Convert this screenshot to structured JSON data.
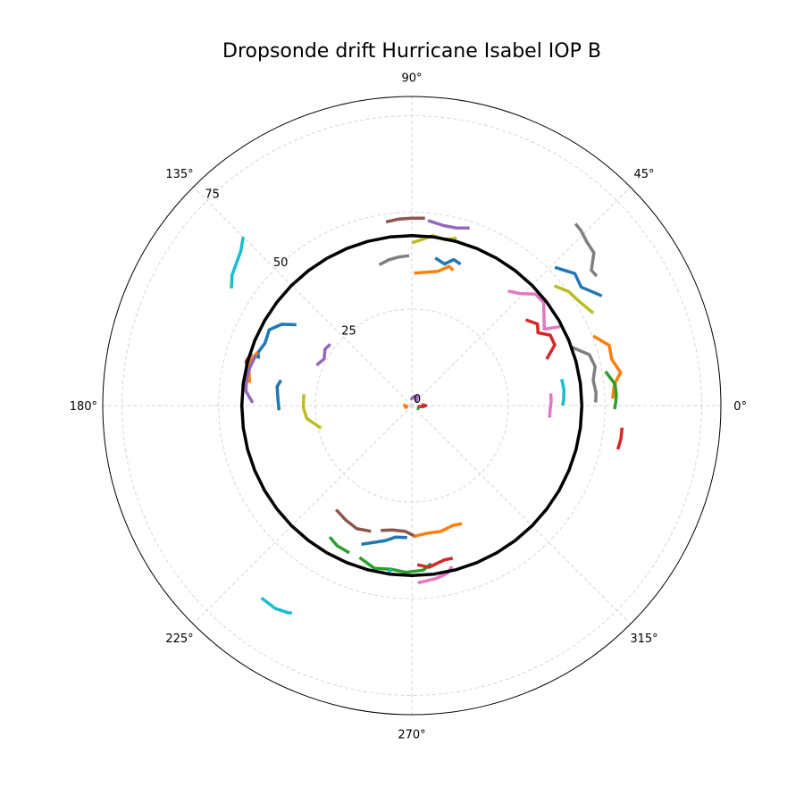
{
  "chart_data": {
    "type": "polar-line",
    "title": "Dropsonde drift Hurricane Isabel IOP B",
    "angle_ticks": [
      "0°",
      "45°",
      "90°",
      "135°",
      "180°",
      "225°",
      "270°",
      "315°"
    ],
    "angle_tick_values": [
      0,
      45,
      90,
      135,
      180,
      225,
      270,
      315
    ],
    "radial_ticks": [
      "0",
      "25",
      "50",
      "75"
    ],
    "radial_tick_values": [
      0,
      25,
      50,
      75
    ],
    "rlim": [
      0,
      80
    ],
    "grid": true,
    "eye_ring_radius": 44,
    "series": [
      {
        "color": "#8c564b",
        "points": [
          [
            98,
            48
          ],
          [
            94,
            48.4
          ],
          [
            90,
            48.5
          ],
          [
            86,
            48.6
          ]
        ]
      },
      {
        "color": "#9467bd",
        "points": [
          [
            85,
            48.1
          ],
          [
            80,
            47.3
          ],
          [
            76,
            47.4
          ],
          [
            72,
            48.3
          ]
        ]
      },
      {
        "color": "#bcbd22",
        "points": [
          [
            90,
            42.1
          ],
          [
            87,
            42.9
          ],
          [
            83,
            44.3
          ],
          [
            79,
            43.8
          ],
          [
            75,
            44.8
          ]
        ]
      },
      {
        "color": "#7f7f7f",
        "points": [
          [
            103,
            37.4
          ],
          [
            99,
            38.2
          ],
          [
            95,
            38.6
          ],
          [
            91,
            38.8
          ]
        ]
      },
      {
        "color": "#1f77b4",
        "points": [
          [
            81,
            38.7
          ],
          [
            77,
            37.6
          ],
          [
            74,
            39.3
          ],
          [
            71,
            38.7
          ]
        ]
      },
      {
        "color": "#ff7f0e",
        "points": [
          [
            89,
            34.3
          ],
          [
            84,
            34.7
          ],
          [
            79,
            35.4
          ],
          [
            75,
            37.3
          ],
          [
            73,
            36.6
          ]
        ]
      },
      {
        "color": "#7f7f7f",
        "points": [
          [
            48,
            63.3
          ],
          [
            46,
            63
          ],
          [
            43,
            62
          ],
          [
            40,
            61.5
          ],
          [
            37,
            58.2
          ],
          [
            35,
            58.4
          ]
        ]
      },
      {
        "color": "#1f77b4",
        "points": [
          [
            44,
            51.5
          ],
          [
            39,
            54.3
          ],
          [
            35,
            53.5
          ],
          [
            30,
            56.8
          ]
        ]
      },
      {
        "color": "#bcbd22",
        "points": [
          [
            40,
            48.2
          ],
          [
            36,
            50.2
          ],
          [
            32,
            51
          ],
          [
            27,
            52.7
          ]
        ]
      },
      {
        "color": "#e377c2",
        "points": [
          [
            50,
            38.7
          ],
          [
            46,
            40.3
          ],
          [
            42,
            43.1
          ],
          [
            38,
            43.3
          ],
          [
            30,
            39.6
          ],
          [
            28,
            43.5
          ]
        ]
      },
      {
        "color": "#d62728",
        "points": [
          [
            37,
            36.9
          ],
          [
            33,
            38.8
          ],
          [
            30,
            37.7
          ],
          [
            27,
            40.2
          ],
          [
            23,
            40.2
          ],
          [
            19,
            36.9
          ]
        ]
      },
      {
        "color": "#7f7f7f",
        "points": [
          [
            20,
            44.1
          ],
          [
            16,
            47.8
          ],
          [
            12,
            48.5
          ],
          [
            8,
            47.4
          ],
          [
            4,
            47.8
          ],
          [
            1,
            47.6
          ]
        ]
      },
      {
        "color": "#ff7f0e",
        "points": [
          [
            21,
            50.3
          ],
          [
            17,
            53.4
          ],
          [
            13,
            53.1
          ],
          [
            9,
            54.7
          ],
          [
            6,
            52.7
          ],
          [
            2,
            52
          ]
        ]
      },
      {
        "color": "#2ca02c",
        "points": [
          [
            10,
            50.9
          ],
          [
            6,
            52.9
          ],
          [
            3,
            53
          ],
          [
            1,
            52.8
          ],
          [
            -1,
            52.5
          ]
        ]
      },
      {
        "color": "#17becf",
        "points": [
          [
            10,
            39.4
          ],
          [
            6,
            39.6
          ],
          [
            2,
            39.3
          ],
          [
            0,
            39
          ]
        ]
      },
      {
        "color": "#e377c2",
        "points": [
          [
            5,
            36.1
          ],
          [
            2,
            36.1
          ],
          [
            -2,
            35.8
          ],
          [
            -5,
            35.8
          ]
        ]
      },
      {
        "color": "#d62728",
        "points": [
          [
            -6,
            54.7
          ],
          [
            -9,
            54.8
          ],
          [
            -12,
            54.5
          ]
        ]
      },
      {
        "color": "#17becf",
        "points": [
          [
            147,
            55.7
          ],
          [
            144,
            57.5
          ],
          [
            138,
            59.6
          ],
          [
            135,
            61.7
          ]
        ]
      },
      {
        "color": "#1f77b4",
        "points": [
          [
            163,
            41.5
          ],
          [
            161,
            42.1
          ],
          [
            157,
            41.3
          ],
          [
            152,
            41.8
          ],
          [
            148,
            39.7
          ],
          [
            145,
            36.5
          ]
        ]
      },
      {
        "color": "#ff7f0e",
        "points": [
          [
            172,
            42.4
          ],
          [
            169,
            42.9
          ],
          [
            165,
            43.6
          ],
          [
            161,
            42.2
          ]
        ]
      },
      {
        "color": "#8c564b",
        "points": [
          [
            166,
            44.1
          ],
          [
            165,
            44.4
          ],
          [
            162,
            43.6
          ]
        ]
      },
      {
        "color": "#9467bd",
        "points": [
          [
            157,
            26.8
          ],
          [
            152,
            25.7
          ],
          [
            147,
            26.8
          ],
          [
            143,
            26.4
          ]
        ]
      },
      {
        "color": "#9467bd",
        "points": [
          [
            179,
            41.2
          ],
          [
            175,
            43.1
          ],
          [
            171,
            43.3
          ],
          [
            167,
            43.1
          ],
          [
            162,
            42.4
          ]
        ]
      },
      {
        "color": "#1f77b4",
        "points": [
          [
            182,
            34.4
          ],
          [
            177,
            34.7
          ],
          [
            172,
            35.2
          ],
          [
            169,
            34.5
          ]
        ]
      },
      {
        "color": "#bcbd22",
        "points": [
          [
            194,
            24.2
          ],
          [
            187,
            27.4
          ],
          [
            181,
            28.1
          ],
          [
            174,
            28.1
          ]
        ]
      },
      {
        "color": "#8c564b",
        "points": [
          [
            234,
            33.3
          ],
          [
            240,
            34.2
          ],
          [
            246,
            34.9
          ],
          [
            252,
            34.2
          ]
        ]
      },
      {
        "color": "#1f77b4",
        "points": [
          [
            250,
            38.2
          ],
          [
            254,
            36.9
          ],
          [
            259,
            35.6
          ],
          [
            263,
            34.3
          ],
          [
            268,
            34.2
          ]
        ]
      },
      {
        "color": "#8c564b",
        "points": [
          [
            256,
            33.3
          ],
          [
            261,
            32.6
          ],
          [
            267,
            32.6
          ],
          [
            272,
            34
          ]
        ]
      },
      {
        "color": "#ff7f0e",
        "points": [
          [
            271,
            33.8
          ],
          [
            277,
            33.3
          ],
          [
            283,
            33.4
          ],
          [
            289,
            32.8
          ],
          [
            293,
            33.2
          ]
        ]
      },
      {
        "color": "#2ca02c",
        "points": [
          [
            238,
            40.1
          ],
          [
            242,
            41.1
          ],
          [
            247,
            41.4
          ]
        ]
      },
      {
        "color": "#2ca02c",
        "points": [
          [
            251,
            41.6
          ],
          [
            257,
            43.2
          ],
          [
            263,
            42.7
          ],
          [
            268,
            43.2
          ],
          [
            274,
            42.7
          ],
          [
            277,
            41.2
          ]
        ]
      },
      {
        "color": "#d62728",
        "points": [
          [
            272,
            41.2
          ],
          [
            276,
            42.1
          ],
          [
            282,
            40.8
          ],
          [
            285,
            40.9
          ]
        ]
      },
      {
        "color": "#e377c2",
        "points": [
          [
            272,
            45.9
          ],
          [
            278,
            45.2
          ],
          [
            282,
            44.4
          ],
          [
            284,
            42.9
          ]
        ]
      },
      {
        "color": "#17becf",
        "points": [
          [
            262,
            43.6
          ],
          [
            263,
            42.8
          ]
        ]
      },
      {
        "color": "#17becf",
        "points": [
          [
            232,
            63.2
          ],
          [
            236,
            63.3
          ],
          [
            239,
            62.5
          ],
          [
            240,
            62
          ]
        ]
      },
      {
        "color": "#ff7f0e",
        "points": [
          [
            174,
            2.2
          ],
          [
            181,
            1.7
          ],
          [
            190,
            1.3
          ],
          [
            200,
            2
          ]
        ]
      },
      {
        "color": "#d62728",
        "points": [
          [
            350,
            1.5
          ],
          [
            355,
            3
          ],
          [
            0,
            3.6
          ],
          [
            5,
            2.5
          ]
        ]
      },
      {
        "color": "#9467bd",
        "points": [
          [
            40,
            1.5
          ],
          [
            60,
            2.7
          ],
          [
            80,
            2.3
          ],
          [
            100,
            1.5
          ]
        ]
      },
      {
        "color": "#2ca02c",
        "points": [
          [
            330,
            1.5
          ],
          [
            340,
            2.1
          ]
        ]
      }
    ]
  }
}
